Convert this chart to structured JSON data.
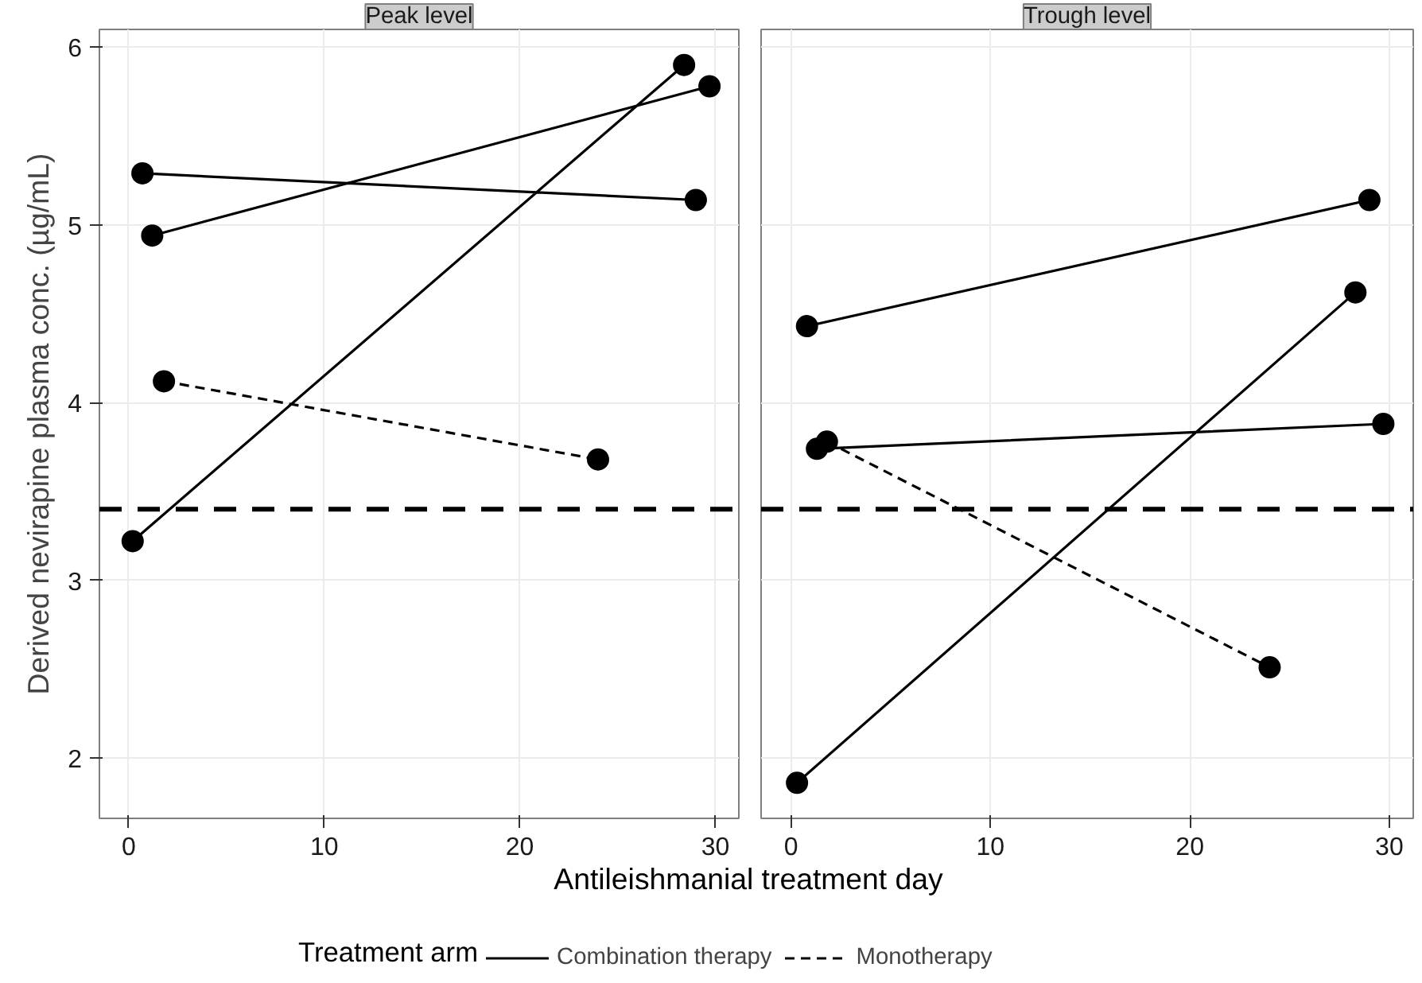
{
  "chart_data": [
    {
      "type": "line",
      "title": "Peak level",
      "ylabel": "Derived nevirapine plasma conc. (µg/mL)",
      "xlabel": "Antileishmanial treatment day",
      "legend": "bottom",
      "legend_title": "Treatment arm",
      "marker": "circle",
      "grid": true,
      "xlim": [
        -1.5,
        31.2
      ],
      "ylim": [
        1.66,
        6.1
      ],
      "xticks": [
        0,
        10,
        20,
        30
      ],
      "yticks": [
        2,
        3,
        4,
        5,
        6
      ],
      "ref_lines": [
        {
          "axis": "y",
          "value": 3.4,
          "color": "#000000",
          "line_style": "dashed"
        }
      ],
      "series": [
        {
          "name": "Combination therapy",
          "color": "#000000",
          "line_style": "solid",
          "x": [
            0.7,
            29.0,
            null,
            1.2,
            29.7,
            null,
            0.2,
            28.4
          ],
          "values": [
            5.29,
            5.14,
            null,
            4.94,
            5.78,
            null,
            3.22,
            5.9
          ]
        },
        {
          "name": "Monotherapy",
          "color": "#000000",
          "line_style": "dashed",
          "x": [
            1.8,
            24.0
          ],
          "values": [
            4.12,
            3.68
          ]
        }
      ]
    },
    {
      "type": "line",
      "title": "Trough level",
      "marker": "circle",
      "grid": true,
      "tick_labels": "x",
      "xlim": [
        -1.5,
        31.2
      ],
      "ylim": [
        1.66,
        6.1
      ],
      "xticks": [
        0,
        10,
        20,
        30
      ],
      "yticks": [
        2,
        3,
        4,
        5,
        6
      ],
      "ref_lines": [
        {
          "axis": "y",
          "value": 3.4,
          "color": "#000000",
          "line_style": "dashed"
        }
      ],
      "series": [
        {
          "name": "Combination therapy",
          "color": "#000000",
          "line_style": "solid",
          "x": [
            0.8,
            29.0,
            null,
            0.3,
            28.3,
            null,
            1.3,
            29.7
          ],
          "values": [
            4.43,
            5.14,
            null,
            1.86,
            4.62,
            null,
            3.74,
            3.88
          ]
        },
        {
          "name": "Monotherapy",
          "color": "#000000",
          "line_style": "dashed",
          "x": [
            1.8,
            24.0
          ],
          "values": [
            3.78,
            2.51
          ]
        }
      ]
    }
  ]
}
